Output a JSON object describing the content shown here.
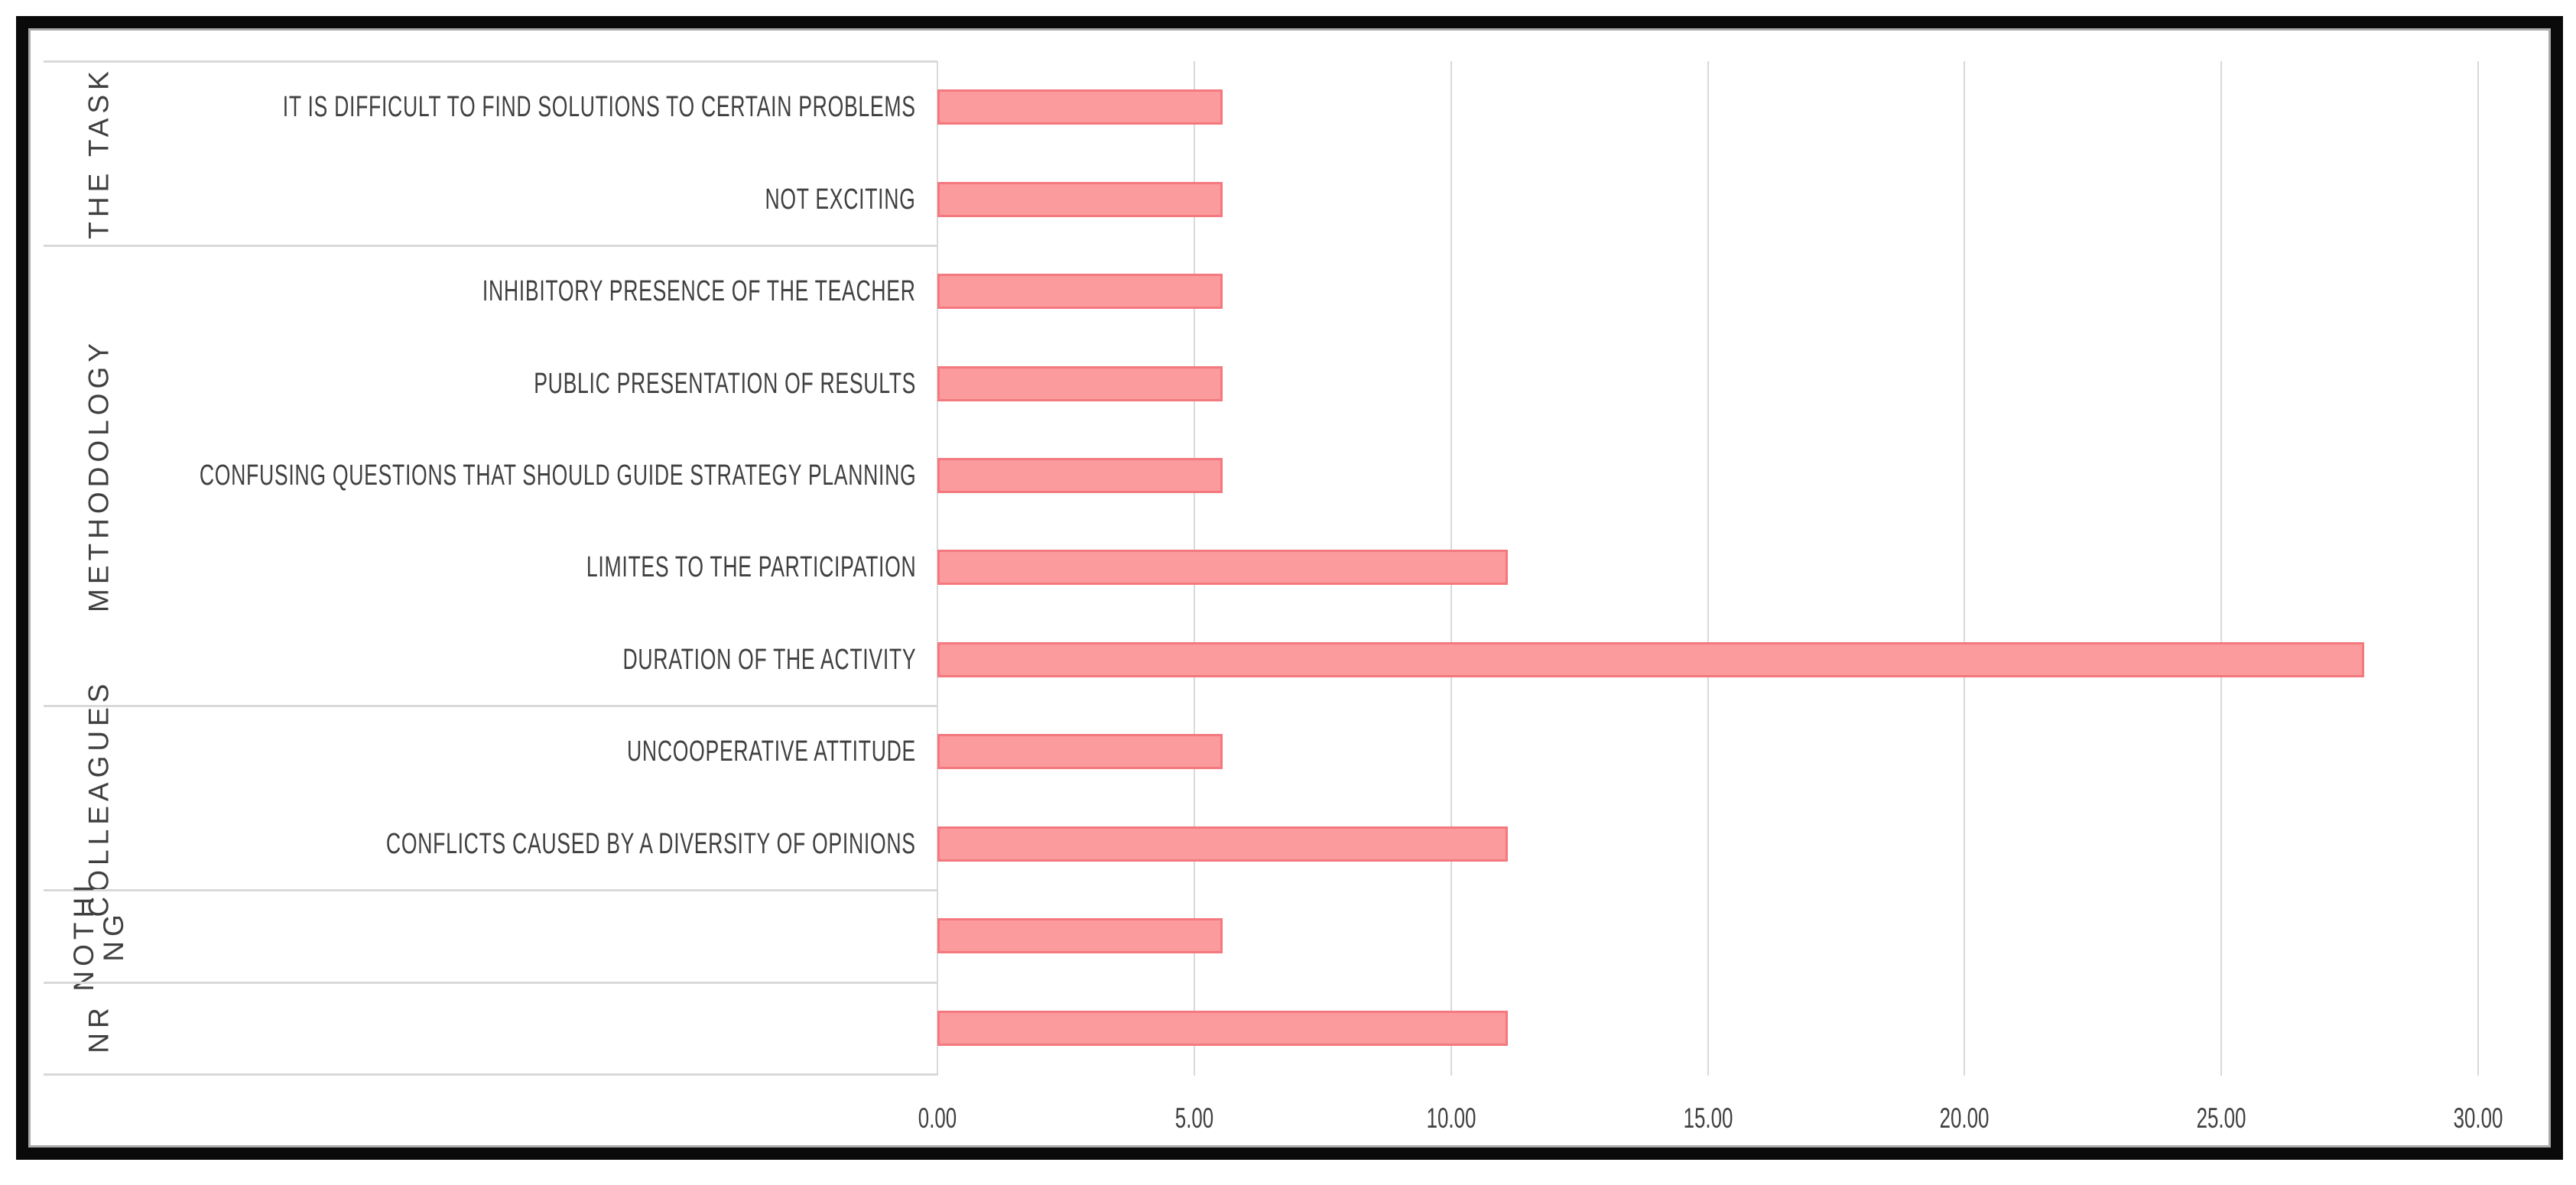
{
  "chart_data": {
    "type": "bar",
    "orientation": "horizontal",
    "title": "",
    "legend": false,
    "grid": true,
    "x_axis": {
      "min": 0,
      "max": 30,
      "tick_step": 5,
      "tick_labels": [
        "0.00",
        "5.00",
        "10.00",
        "15.00",
        "20.00",
        "25.00",
        "30.00"
      ]
    },
    "colors": {
      "bar_fill": "#fb9b9d",
      "bar_border": "#f4797e",
      "gridline": "#d9d9d9",
      "separator": "#d9d9d9",
      "text": "#404040",
      "frame": "#0a0a0a",
      "background": "#ffffff"
    },
    "groups": [
      {
        "label": "THE TASK",
        "items": [
          {
            "label": "IT IS DIFFICULT TO FIND SOLUTIONS TO CERTAIN PROBLEMS",
            "value": 5.56
          },
          {
            "label": "NOT EXCITING",
            "value": 5.56
          }
        ]
      },
      {
        "label": "METHODOLOGY",
        "items": [
          {
            "label": "INHIBITORY PRESENCE OF THE TEACHER",
            "value": 5.56
          },
          {
            "label": "PUBLIC PRESENTATION OF RESULTS",
            "value": 5.56
          },
          {
            "label": "CONFUSING QUESTIONS THAT SHOULD GUIDE STRATEGY PLANNING",
            "value": 5.56
          },
          {
            "label": "LIMITES TO THE PARTICIPATION",
            "value": 11.11
          },
          {
            "label": "DURATION OF THE ACTIVITY",
            "value": 27.78
          }
        ]
      },
      {
        "label": "COLLEAGUES",
        "items": [
          {
            "label": "UNCOOPERATIVE ATTITUDE",
            "value": 5.56
          },
          {
            "label": "CONFLICTS CAUSED BY A DIVERSITY OF OPINIONS",
            "value": 11.11
          }
        ]
      },
      {
        "label": "NOTHI NG",
        "wrap": true,
        "items": [
          {
            "label": "",
            "value": 5.56
          }
        ]
      },
      {
        "label": "NR",
        "items": [
          {
            "label": "",
            "value": 11.11
          }
        ]
      }
    ]
  }
}
